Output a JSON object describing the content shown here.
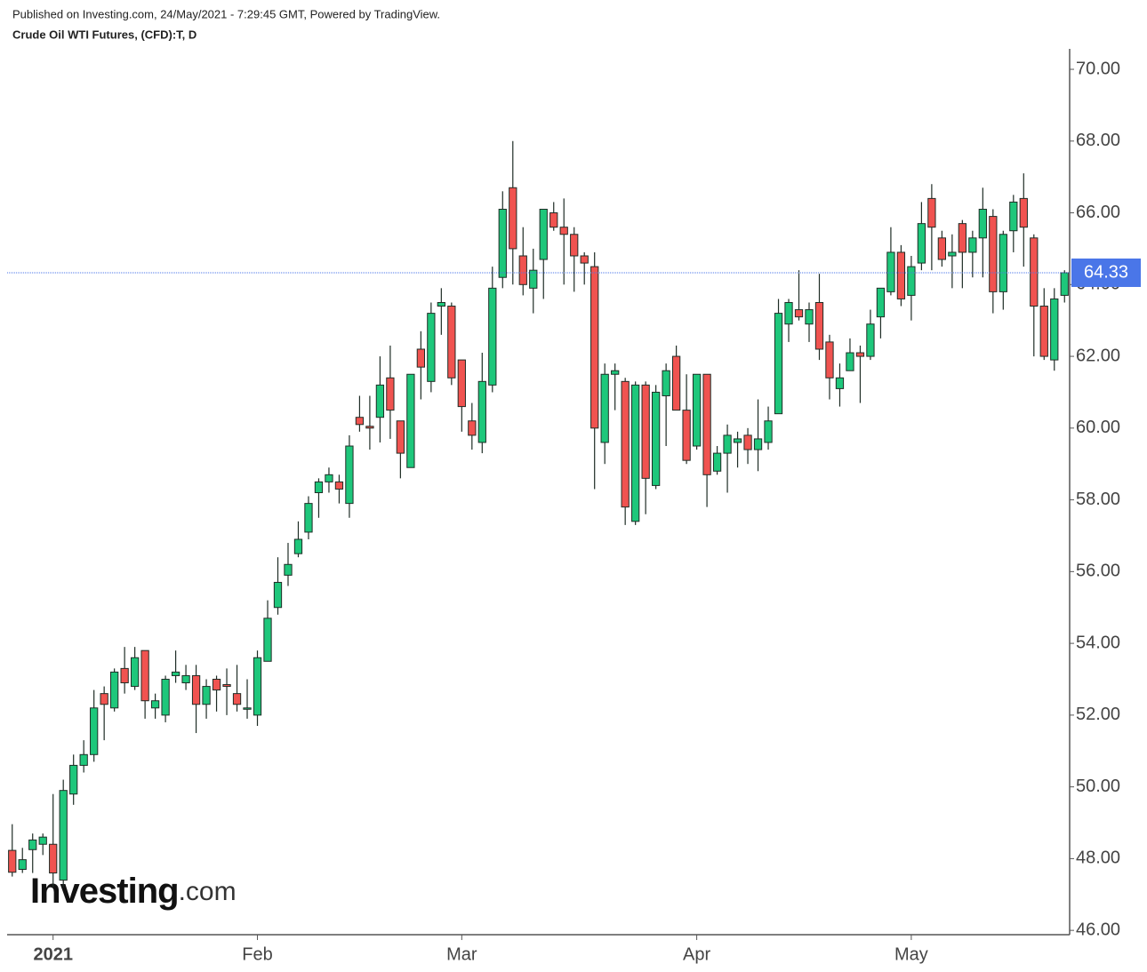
{
  "header": {
    "published": "Published on Investing.com, 24/May/2021 - 7:29:45 GMT, Powered by TradingView.",
    "symbol": "Crude Oil WTI Futures, (CFD):T, D"
  },
  "watermark": {
    "brand": "Investing",
    "suffix": ".com"
  },
  "chart_data": {
    "type": "candlestick",
    "categories": [
      null,
      null,
      null,
      null,
      "2021",
      null,
      null,
      null,
      null,
      null,
      null,
      null,
      null,
      null,
      null,
      null,
      null,
      null,
      null,
      null,
      null,
      null,
      null,
      null,
      "Feb",
      null,
      null,
      null,
      null,
      null,
      null,
      null,
      null,
      null,
      null,
      null,
      null,
      null,
      null,
      null,
      null,
      null,
      null,
      null,
      "Mar",
      null,
      null,
      null,
      null,
      null,
      null,
      null,
      null,
      null,
      null,
      null,
      null,
      null,
      null,
      null,
      null,
      null,
      null,
      null,
      null,
      null,
      null,
      "Apr",
      null,
      null,
      null,
      null,
      null,
      null,
      null,
      null,
      null,
      null,
      null,
      null,
      null,
      null,
      null,
      null,
      null,
      null,
      null,
      null,
      "May",
      null,
      null,
      null,
      null,
      null,
      null,
      null,
      null,
      null,
      null,
      null,
      null,
      null,
      null,
      null
    ],
    "open": [
      48.23,
      47.7,
      48.25,
      48.4,
      48.4,
      47.4,
      49.8,
      50.6,
      50.9,
      52.6,
      52.2,
      53.3,
      52.8,
      53.8,
      52.2,
      52.0,
      53.1,
      52.9,
      53.1,
      52.3,
      53.0,
      52.85,
      52.6,
      52.2,
      52.0,
      53.5,
      55.0,
      55.9,
      56.5,
      57.1,
      58.2,
      58.5,
      58.5,
      57.9,
      60.3,
      60.05,
      60.3,
      61.4,
      60.2,
      58.9,
      62.2,
      61.3,
      63.4,
      63.4,
      61.9,
      60.2,
      59.6,
      61.2,
      64.2,
      66.7,
      64.8,
      63.9,
      64.7,
      66.0,
      65.6,
      65.4,
      64.8,
      64.5,
      59.6,
      61.5,
      61.3,
      57.4,
      61.2,
      58.4,
      60.9,
      62.0,
      60.5,
      59.5,
      61.5,
      58.8,
      59.3,
      59.6,
      59.8,
      59.4,
      59.6,
      60.4,
      62.9,
      63.3,
      62.9,
      63.5,
      62.4,
      61.1,
      61.6,
      62.1,
      62.0,
      63.1,
      63.8,
      64.9,
      63.7,
      64.6,
      66.4,
      65.3,
      64.8,
      65.7,
      64.9,
      65.3,
      65.9,
      63.8,
      65.5,
      66.4,
      65.3,
      63.4,
      61.9,
      63.7
    ],
    "high": [
      48.96,
      48.3,
      48.7,
      48.7,
      49.8,
      50.2,
      50.9,
      51.3,
      52.7,
      52.8,
      53.3,
      53.9,
      53.9,
      53.8,
      52.6,
      53.1,
      53.8,
      53.4,
      53.4,
      53.0,
      53.1,
      53.3,
      53.4,
      53.0,
      53.8,
      55.2,
      56.4,
      56.8,
      57.4,
      58.1,
      58.6,
      58.9,
      58.7,
      59.8,
      60.9,
      60.9,
      62.0,
      62.3,
      60.2,
      61.5,
      62.7,
      63.5,
      63.9,
      63.5,
      61.9,
      60.7,
      62.1,
      64.5,
      66.6,
      68.0,
      65.6,
      65.0,
      66.1,
      66.3,
      66.4,
      65.6,
      64.9,
      64.9,
      61.8,
      61.8,
      61.4,
      61.3,
      61.3,
      61.2,
      61.8,
      62.3,
      61.5,
      61.5,
      61.5,
      59.5,
      60.1,
      59.9,
      60.0,
      60.8,
      60.6,
      63.6,
      63.6,
      64.4,
      63.5,
      64.3,
      62.6,
      61.8,
      62.5,
      62.3,
      63.3,
      63.9,
      65.6,
      65.1,
      64.8,
      66.3,
      66.8,
      65.5,
      65.4,
      65.8,
      65.5,
      66.7,
      66.1,
      65.5,
      66.5,
      67.1,
      65.4,
      63.9,
      63.9,
      64.4
    ],
    "low": [
      47.5,
      47.6,
      47.6,
      48.1,
      47.2,
      47.2,
      49.5,
      50.4,
      50.7,
      51.3,
      52.1,
      52.6,
      52.7,
      51.9,
      51.9,
      51.8,
      52.9,
      52.7,
      51.5,
      51.9,
      52.1,
      52.0,
      52.1,
      51.9,
      51.7,
      53.5,
      54.8,
      55.6,
      56.4,
      56.9,
      57.5,
      58.2,
      57.9,
      57.5,
      59.9,
      59.4,
      59.6,
      59.7,
      58.6,
      58.9,
      60.8,
      61.0,
      62.6,
      61.2,
      59.9,
      59.4,
      59.3,
      61.0,
      63.9,
      64.0,
      63.7,
      63.2,
      63.6,
      65.5,
      64.0,
      63.8,
      64.0,
      58.3,
      59.0,
      60.5,
      57.3,
      57.3,
      57.6,
      58.3,
      59.5,
      60.5,
      59.0,
      59.4,
      57.8,
      58.7,
      58.2,
      58.9,
      59.0,
      58.8,
      59.4,
      60.4,
      62.4,
      63.0,
      62.4,
      61.9,
      60.8,
      60.6,
      61.6,
      60.7,
      61.9,
      62.5,
      63.7,
      63.4,
      63.0,
      64.4,
      64.4,
      64.5,
      63.9,
      63.9,
      64.2,
      64.2,
      63.2,
      63.3,
      64.9,
      64.5,
      62.0,
      61.9,
      61.6,
      63.5
    ],
    "close": [
      47.62,
      47.97,
      48.52,
      48.6,
      47.6,
      49.9,
      50.6,
      50.9,
      52.2,
      52.3,
      53.2,
      52.9,
      53.6,
      52.4,
      52.4,
      53.0,
      53.2,
      53.1,
      52.3,
      52.8,
      52.7,
      52.8,
      52.3,
      52.2,
      53.6,
      54.7,
      55.7,
      56.2,
      56.9,
      57.9,
      58.5,
      58.7,
      58.3,
      59.5,
      60.1,
      60.0,
      61.2,
      60.5,
      59.3,
      61.5,
      61.7,
      63.2,
      63.5,
      61.4,
      60.6,
      59.8,
      61.3,
      63.9,
      66.1,
      65.0,
      64.0,
      64.4,
      66.1,
      65.6,
      65.4,
      64.8,
      64.6,
      60.0,
      61.5,
      61.6,
      57.8,
      61.2,
      58.6,
      61.0,
      61.6,
      60.5,
      59.1,
      61.5,
      58.7,
      59.3,
      59.8,
      59.7,
      59.4,
      59.7,
      60.2,
      63.2,
      63.5,
      63.1,
      63.3,
      62.2,
      61.4,
      61.4,
      62.1,
      62.0,
      62.9,
      63.9,
      64.9,
      63.6,
      64.5,
      65.7,
      65.6,
      64.7,
      64.9,
      64.9,
      65.3,
      66.1,
      63.8,
      65.4,
      66.3,
      65.6,
      63.4,
      62.0,
      63.6,
      64.33
    ],
    "up_color": "#1ec77b",
    "down_color": "#f05350",
    "edge_color": "#1f2d26",
    "ylim": [
      45.88,
      70.57
    ],
    "yticks": [
      {
        "value": 46,
        "label": "46.00"
      },
      {
        "value": 48,
        "label": "48.00"
      },
      {
        "value": 50,
        "label": "50.00"
      },
      {
        "value": 52,
        "label": "52.00"
      },
      {
        "value": 54,
        "label": "54.00"
      },
      {
        "value": 56,
        "label": "56.00"
      },
      {
        "value": 58,
        "label": "58.00"
      },
      {
        "value": 60,
        "label": "60.00"
      },
      {
        "value": 62,
        "label": "62.00"
      },
      {
        "value": 64,
        "label": "64.00"
      },
      {
        "value": 66,
        "label": "66.00"
      },
      {
        "value": 68,
        "label": "68.00"
      },
      {
        "value": 70,
        "label": "70.00"
      }
    ],
    "last_price": 64.33,
    "last_price_color": "#4a76e8"
  }
}
